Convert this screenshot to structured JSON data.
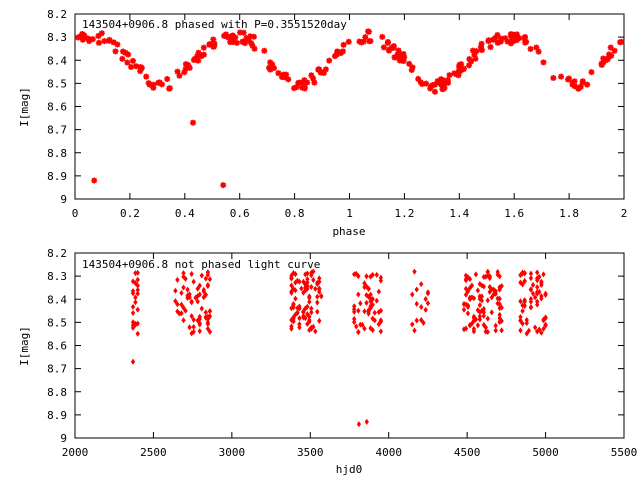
{
  "chart_data": [
    {
      "type": "scatter",
      "title": "143504+0906.8 phased with P=0.3551520day",
      "xlabel": "phase",
      "ylabel": "I[mag]",
      "xlim": [
        0,
        2
      ],
      "ylim": [
        8.2,
        9.0
      ],
      "y_inverted": true,
      "grid": false,
      "legend": "none",
      "marker_color": "#ff0000",
      "marker": "star",
      "x_ticks": [
        "0",
        "0.2",
        "0.4",
        "0.6",
        "0.8",
        "1",
        "1.2",
        "1.4",
        "1.6",
        "1.8",
        "2"
      ],
      "y_ticks": [
        "8.2",
        "8.3",
        "8.4",
        "8.5",
        "8.6",
        "8.7",
        "8.8",
        "8.9",
        "9"
      ],
      "curve": {
        "description": "periodic light curve with two cycles, shown as points",
        "phase_mag_template": [
          [
            0.0,
            8.31
          ],
          [
            0.05,
            8.3
          ],
          [
            0.1,
            8.3
          ],
          [
            0.15,
            8.35
          ],
          [
            0.2,
            8.4
          ],
          [
            0.25,
            8.46
          ],
          [
            0.3,
            8.52
          ],
          [
            0.35,
            8.5
          ],
          [
            0.4,
            8.44
          ],
          [
            0.45,
            8.38
          ],
          [
            0.5,
            8.33
          ],
          [
            0.55,
            8.31
          ],
          [
            0.6,
            8.3
          ],
          [
            0.65,
            8.32
          ],
          [
            0.7,
            8.4
          ],
          [
            0.75,
            8.47
          ],
          [
            0.8,
            8.5
          ],
          [
            0.85,
            8.5
          ],
          [
            0.9,
            8.45
          ],
          [
            0.95,
            8.37
          ],
          [
            1.0,
            8.31
          ]
        ]
      },
      "outliers": [
        {
          "x": 0.07,
          "y": 8.92
        },
        {
          "x": 0.43,
          "y": 8.67
        },
        {
          "x": 0.54,
          "y": 8.94
        }
      ]
    },
    {
      "type": "scatter",
      "title": "143504+0906.8 not phased light curve",
      "xlabel": "hjd0",
      "ylabel": "I[mag]",
      "xlim": [
        2000,
        5500
      ],
      "ylim": [
        8.2,
        9.0
      ],
      "y_inverted": true,
      "grid": false,
      "legend": "none",
      "marker_color": "#ff0000",
      "marker": "diamond",
      "x_ticks": [
        "2000",
        "2500",
        "3000",
        "3500",
        "4000",
        "4500",
        "5000",
        "5500"
      ],
      "y_ticks": [
        "8.2",
        "8.3",
        "8.4",
        "8.5",
        "8.6",
        "8.7",
        "8.8",
        "8.9",
        "9"
      ],
      "seasons": [
        {
          "start": 2370,
          "end": 2400,
          "count": 22
        },
        {
          "start": 2640,
          "end": 2860,
          "count": 70
        },
        {
          "start": 3380,
          "end": 3570,
          "count": 90
        },
        {
          "start": 3780,
          "end": 3950,
          "count": 55
        },
        {
          "start": 4150,
          "end": 4250,
          "count": 16
        },
        {
          "start": 4480,
          "end": 4720,
          "count": 95
        },
        {
          "start": 4840,
          "end": 5000,
          "count": 65
        }
      ],
      "outliers": [
        {
          "x": 2370,
          "y": 8.67
        },
        {
          "x": 3810,
          "y": 8.94
        },
        {
          "x": 3860,
          "y": 8.93
        }
      ]
    }
  ]
}
